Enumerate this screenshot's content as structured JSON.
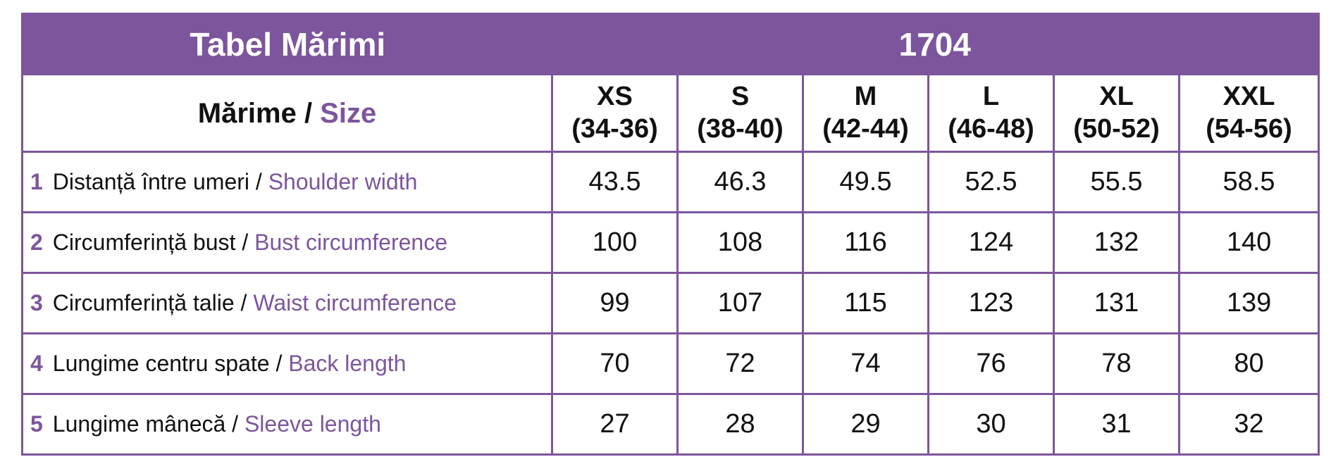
{
  "header": {
    "title": "Tabel Mărimi",
    "model": "1704"
  },
  "size_header": {
    "label_ro": "Mărime",
    "separator": " / ",
    "label_en": "Size"
  },
  "sizes": [
    {
      "code": "XS",
      "range": "(34-36)"
    },
    {
      "code": "S",
      "range": "(38-40)"
    },
    {
      "code": "M",
      "range": "(42-44)"
    },
    {
      "code": "L",
      "range": "(46-48)"
    },
    {
      "code": "XL",
      "range": "(50-52)"
    },
    {
      "code": "XXL",
      "range": "(54-56)"
    }
  ],
  "rows": [
    {
      "num": "1",
      "label_ro": "Distanță între umeri",
      "separator": " / ",
      "label_en": "Shoulder width",
      "values": [
        "43.5",
        "46.3",
        "49.5",
        "52.5",
        "55.5",
        "58.5"
      ]
    },
    {
      "num": "2",
      "label_ro": "Circumferință bust",
      "separator": " / ",
      "label_en": "Bust circumference",
      "values": [
        "100",
        "108",
        "116",
        "124",
        "132",
        "140"
      ]
    },
    {
      "num": "3",
      "label_ro": "Circumferință talie",
      "separator": " / ",
      "label_en": "Waist circumference",
      "values": [
        "99",
        "107",
        "115",
        "123",
        "131",
        "139"
      ]
    },
    {
      "num": "4",
      "label_ro": "Lungime centru spate",
      "separator": " / ",
      "label_en": "Back length",
      "values": [
        "70",
        "72",
        "74",
        "76",
        "78",
        "80"
      ]
    },
    {
      "num": "5",
      "label_ro": "Lungime mânecă",
      "separator": " / ",
      "label_en": "Sleeve length",
      "values": [
        "27",
        "28",
        "29",
        "30",
        "31",
        "32"
      ]
    }
  ],
  "colors": {
    "accent": "#7d559c",
    "header_text": "#ffffff",
    "body_text": "#111111"
  }
}
